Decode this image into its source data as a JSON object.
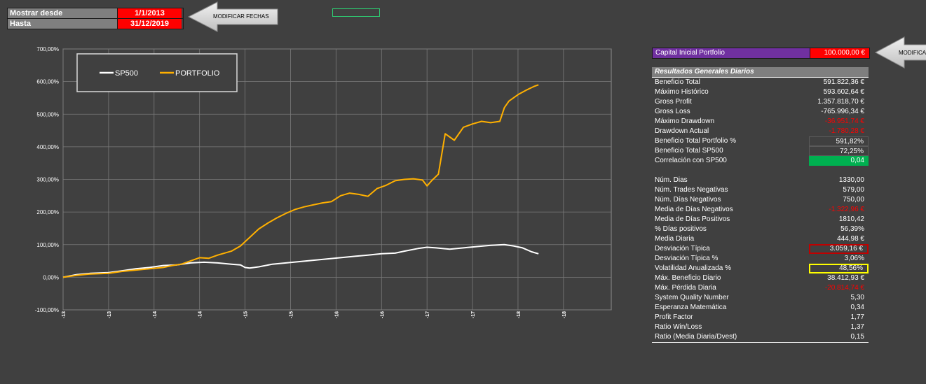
{
  "filter": {
    "from_label": "Mostrar desde",
    "from_value": "1/1/2013",
    "to_label": "Hasta",
    "to_value": "31/12/2019"
  },
  "buttons": {
    "modify_dates": "MODIFICAR FECHAS",
    "modify_capital": "MODIFICA"
  },
  "capital": {
    "label": "Capital Inicial Portfolio",
    "value": "100.000,00 €"
  },
  "stats": {
    "header": "Resultados Generales Diarios",
    "rows": [
      {
        "label": "Beneficio Total",
        "value": "591.822,36 €"
      },
      {
        "label": "Máximo Histórico",
        "value": "593.602,64 €"
      },
      {
        "label": "Gross Profit",
        "value": "1.357.818,70 €"
      },
      {
        "label": "Gross Loss",
        "value": "-765.996,34 €"
      },
      {
        "label": "Máximo Drawdown",
        "value": "-36.951,74 €"
      },
      {
        "label": "Drawdown Actual",
        "value": "-1.780,28 €"
      },
      {
        "label": "Beneficio Total Portfolio %",
        "value": "591,82%"
      },
      {
        "label": "Beneficio Total SP500",
        "value": "72,25%"
      },
      {
        "label": "Correlación con SP500",
        "value": "0,04"
      }
    ],
    "rows2": [
      {
        "label": "Núm. Dias",
        "value": "1330,00"
      },
      {
        "label": "Núm. Trades Negativas",
        "value": "579,00"
      },
      {
        "label": "Núm. Días Negativos",
        "value": "750,00"
      },
      {
        "label": "Media de Días Negativos",
        "value": "-1.322,96 €"
      },
      {
        "label": "Media de Días Positivos",
        "value": "1810,42"
      },
      {
        "label": "% Días positivos",
        "value": "56,39%"
      },
      {
        "label": "Media Diaria",
        "value": "444,98 €"
      },
      {
        "label": "Desviación Típica",
        "value": "3.059,16 €"
      },
      {
        "label": "Desviación Típica %",
        "value": "3,06%"
      },
      {
        "label": "Volatilidad Anualizada %",
        "value": "48,56%"
      },
      {
        "label": "Máx. Beneficio Diario",
        "value": "38.412,93 €"
      },
      {
        "label": "Máx. Pérdida Diaria",
        "value": "-20.814,74 €"
      },
      {
        "label": "System Quality Number",
        "value": "5,30"
      },
      {
        "label": "Esperanza Matemática",
        "value": "0,34"
      },
      {
        "label": "Profit Factor",
        "value": "1,77"
      },
      {
        "label": "Ratio Win/Loss",
        "value": "1,37"
      },
      {
        "label": "Ratio (Media Diaria/Dvest)",
        "value": "0,15"
      }
    ]
  },
  "chart_data": {
    "type": "line",
    "ylim": [
      -100,
      700
    ],
    "y_ticks": [
      "700,00%",
      "600,00%",
      "500,00%",
      "400,00%",
      "300,00%",
      "200,00%",
      "100,00%",
      "0,00%",
      "-100,00%"
    ],
    "x_ticks": [
      "02-01-13",
      "02-07-13",
      "02-01-14",
      "02-07-14",
      "02-01-15",
      "02-07-15",
      "02-01-16",
      "02-07-16",
      "02-01-17",
      "02-07-17",
      "02-01-18",
      "02-07-18"
    ],
    "legend": [
      "SP500",
      "PORTFOLIO"
    ],
    "colors": {
      "SP500": "#ffffff",
      "PORTFOLIO": "#ffb000"
    },
    "series": [
      {
        "name": "SP500",
        "points": [
          [
            0,
            0
          ],
          [
            0.3,
            8
          ],
          [
            0.6,
            12
          ],
          [
            1,
            14
          ],
          [
            1.3,
            20
          ],
          [
            1.6,
            26
          ],
          [
            1.9,
            30
          ],
          [
            2.2,
            36
          ],
          [
            2.5,
            38
          ],
          [
            2.8,
            44
          ],
          [
            3.1,
            46
          ],
          [
            3.4,
            44
          ],
          [
            3.7,
            40
          ],
          [
            3.9,
            38
          ],
          [
            4.0,
            30
          ],
          [
            4.1,
            28
          ],
          [
            4.3,
            32
          ],
          [
            4.6,
            40
          ],
          [
            4.9,
            44
          ],
          [
            5.2,
            48
          ],
          [
            5.5,
            52
          ],
          [
            5.8,
            56
          ],
          [
            6.1,
            60
          ],
          [
            6.4,
            64
          ],
          [
            6.7,
            68
          ],
          [
            7.0,
            72
          ],
          [
            7.3,
            74
          ],
          [
            7.5,
            80
          ],
          [
            7.8,
            88
          ],
          [
            8.0,
            92
          ],
          [
            8.2,
            90
          ],
          [
            8.5,
            86
          ],
          [
            8.8,
            90
          ],
          [
            9.1,
            94
          ],
          [
            9.4,
            98
          ],
          [
            9.7,
            100
          ],
          [
            9.9,
            96
          ],
          [
            10.1,
            90
          ],
          [
            10.3,
            78
          ],
          [
            10.45,
            72
          ]
        ]
      },
      {
        "name": "PORTFOLIO",
        "points": [
          [
            0,
            0
          ],
          [
            0.3,
            6
          ],
          [
            0.6,
            10
          ],
          [
            1,
            12
          ],
          [
            1.3,
            18
          ],
          [
            1.6,
            22
          ],
          [
            1.9,
            26
          ],
          [
            2.2,
            30
          ],
          [
            2.4,
            36
          ],
          [
            2.6,
            40
          ],
          [
            2.8,
            50
          ],
          [
            3.0,
            60
          ],
          [
            3.2,
            58
          ],
          [
            3.4,
            68
          ],
          [
            3.7,
            80
          ],
          [
            3.9,
            96
          ],
          [
            4.1,
            122
          ],
          [
            4.3,
            148
          ],
          [
            4.5,
            166
          ],
          [
            4.7,
            182
          ],
          [
            4.9,
            196
          ],
          [
            5.1,
            208
          ],
          [
            5.3,
            216
          ],
          [
            5.5,
            222
          ],
          [
            5.7,
            228
          ],
          [
            5.9,
            232
          ],
          [
            6.1,
            250
          ],
          [
            6.3,
            258
          ],
          [
            6.5,
            254
          ],
          [
            6.7,
            248
          ],
          [
            6.9,
            272
          ],
          [
            7.1,
            282
          ],
          [
            7.3,
            296
          ],
          [
            7.5,
            300
          ],
          [
            7.7,
            302
          ],
          [
            7.9,
            298
          ],
          [
            8.0,
            280
          ],
          [
            8.1,
            296
          ],
          [
            8.25,
            316
          ],
          [
            8.4,
            440
          ],
          [
            8.6,
            420
          ],
          [
            8.8,
            460
          ],
          [
            9.0,
            470
          ],
          [
            9.2,
            478
          ],
          [
            9.4,
            474
          ],
          [
            9.6,
            478
          ],
          [
            9.7,
            520
          ],
          [
            9.8,
            540
          ],
          [
            10.0,
            560
          ],
          [
            10.2,
            575
          ],
          [
            10.35,
            585
          ],
          [
            10.45,
            590
          ]
        ]
      }
    ]
  }
}
